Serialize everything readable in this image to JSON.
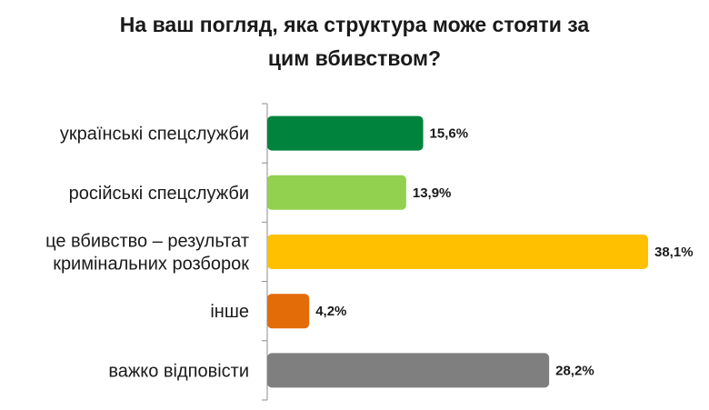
{
  "chart_data": {
    "type": "bar",
    "orientation": "horizontal",
    "title": "На ваш погляд, яка структура може стояти за цим вбивством?",
    "title_lines": [
      "На ваш погляд, яка структура може стояти за",
      "цим вбивством?"
    ],
    "categories": [
      "українські спецслужби",
      "російські спецслужби",
      "це вбивство – результат кримінальних розборок",
      "інше",
      "важко відповісти"
    ],
    "category_lines": [
      [
        "українські спецслужби"
      ],
      [
        "російські спецслужби"
      ],
      [
        "це вбивство – результат",
        "кримінальних розборок"
      ],
      [
        "інше"
      ],
      [
        "важко відповісти"
      ]
    ],
    "values": [
      15.6,
      13.9,
      38.1,
      4.2,
      28.2
    ],
    "value_labels": [
      "15,6%",
      "13,9%",
      "38,1%",
      "4,2%",
      "28,2%"
    ],
    "colors": [
      "#00843D",
      "#92D050",
      "#FFC000",
      "#E36C09",
      "#7F7F7F"
    ],
    "xlim": [
      0,
      40
    ],
    "grid": false,
    "legend": "none"
  }
}
